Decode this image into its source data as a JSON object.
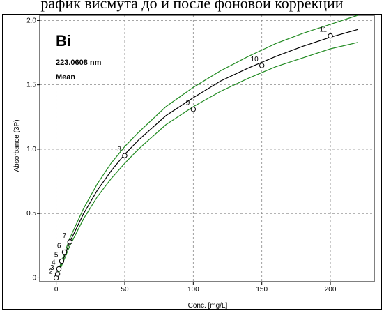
{
  "caption": "рафик висмута до и после фоновой коррекции",
  "chart_data": {
    "type": "scatter",
    "title": "Bi",
    "annotations": [
      "223.0608 nm",
      "Mean"
    ],
    "xlabel": "Conc. [mg/L]",
    "ylabel": "Absorbance (3P)",
    "xlim": [
      -12,
      232
    ],
    "ylim": [
      -0.03,
      2.04
    ],
    "xticks": [
      0,
      50,
      100,
      150,
      200
    ],
    "yticks": [
      0,
      0.5,
      1.0,
      1.5,
      2.0
    ],
    "ytick_labels": [
      "0",
      "0.5",
      "1.0",
      "1.5",
      "2.0"
    ],
    "grid": true,
    "points": [
      {
        "label": "2",
        "x": 0,
        "y": 0.0
      },
      {
        "label": "3",
        "x": 1,
        "y": 0.03
      },
      {
        "label": "4",
        "x": 2,
        "y": 0.07
      },
      {
        "label": "5",
        "x": 4,
        "y": 0.13
      },
      {
        "label": "6",
        "x": 6,
        "y": 0.2
      },
      {
        "label": "7",
        "x": 10,
        "y": 0.28
      },
      {
        "label": "8",
        "x": 50,
        "y": 0.95
      },
      {
        "label": "9",
        "x": 100,
        "y": 1.31
      },
      {
        "label": "10",
        "x": 150,
        "y": 1.65
      },
      {
        "label": "11",
        "x": 200,
        "y": 1.88
      }
    ],
    "series": [
      {
        "role": "calibration",
        "color": "#000000",
        "x": [
          0,
          5,
          10,
          20,
          30,
          40,
          50,
          60,
          80,
          100,
          120,
          140,
          160,
          180,
          200,
          220
        ],
        "y": [
          0.0,
          0.14,
          0.28,
          0.5,
          0.68,
          0.83,
          0.96,
          1.07,
          1.26,
          1.4,
          1.53,
          1.63,
          1.72,
          1.8,
          1.87,
          1.93
        ]
      },
      {
        "role": "upper-confidence",
        "color": "#228b22",
        "x": [
          0,
          5,
          10,
          20,
          30,
          40,
          50,
          60,
          80,
          100,
          120,
          140,
          160,
          180,
          200,
          220
        ],
        "y": [
          0.01,
          0.16,
          0.31,
          0.54,
          0.73,
          0.89,
          1.02,
          1.13,
          1.33,
          1.48,
          1.61,
          1.72,
          1.82,
          1.9,
          1.97,
          2.04
        ]
      },
      {
        "role": "lower-confidence",
        "color": "#228b22",
        "x": [
          0,
          5,
          10,
          20,
          30,
          40,
          50,
          60,
          80,
          100,
          120,
          140,
          160,
          180,
          200,
          220
        ],
        "y": [
          -0.01,
          0.12,
          0.25,
          0.46,
          0.63,
          0.77,
          0.89,
          1.0,
          1.19,
          1.33,
          1.45,
          1.55,
          1.64,
          1.71,
          1.78,
          1.83
        ]
      }
    ]
  }
}
